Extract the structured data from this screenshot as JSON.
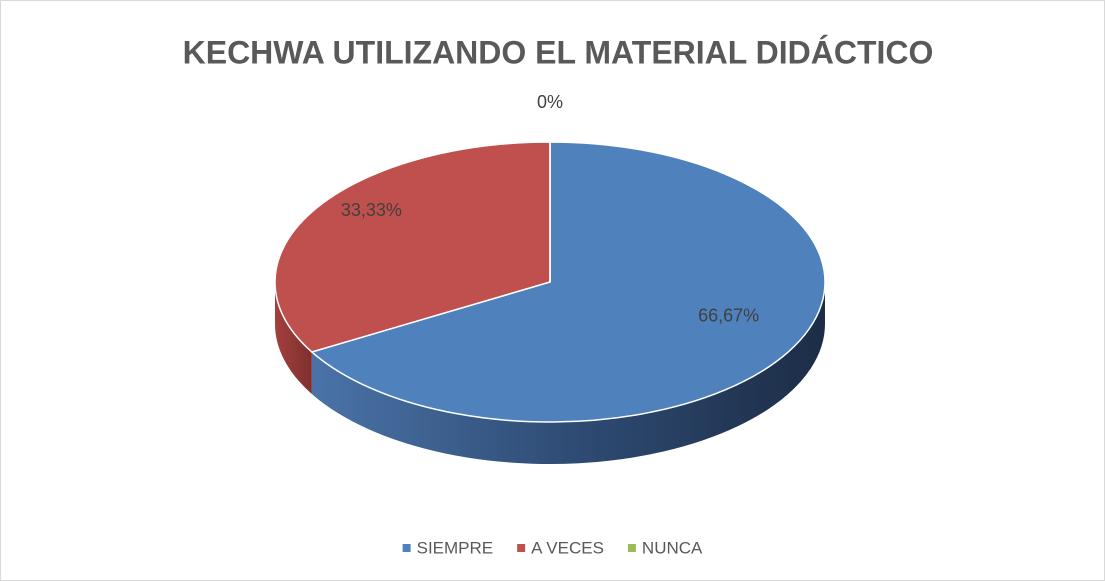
{
  "chart_data": {
    "type": "pie",
    "title": "KECHWA UTILIZANDO EL MATERIAL DIDÁCTICO",
    "categories": [
      "SIEMPRE",
      "A VECES",
      "NUNCA"
    ],
    "values": [
      66.67,
      33.33,
      0
    ],
    "value_labels": [
      "66,67%",
      "33,33%",
      "0%"
    ],
    "colors": [
      "#4f81bd",
      "#c0504d",
      "#9bbb59"
    ],
    "legend": "bottom"
  }
}
